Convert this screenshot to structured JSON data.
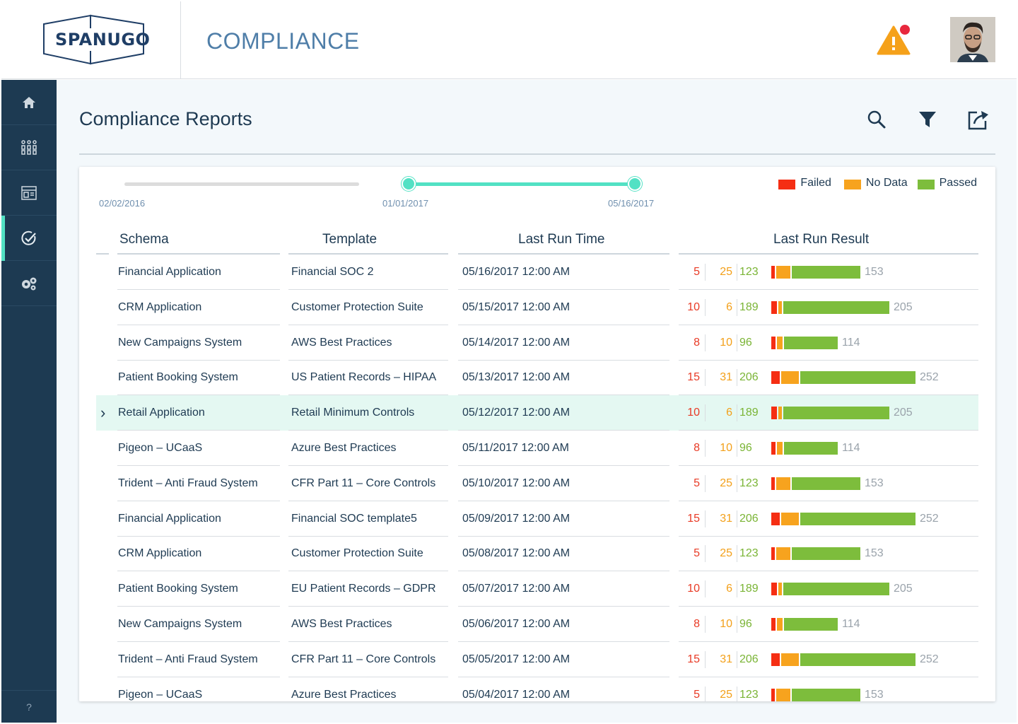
{
  "brand": {
    "logo_text": "SPANUGO",
    "app_title": "COMPLIANCE"
  },
  "page": {
    "title": "Compliance Reports"
  },
  "timeline": {
    "start": "02/02/2016",
    "range_start": "01/01/2017",
    "range_end": "05/16/2017"
  },
  "legend": {
    "failed": "Failed",
    "nodata": "No Data",
    "passed": "Passed"
  },
  "colors": {
    "failed": "#f52e13",
    "nodata": "#f7a31e",
    "passed": "#7dbd3c",
    "accent": "#52e1c4",
    "sidebar": "#1d3a52"
  },
  "columns": {
    "schema": "Schema",
    "template": "Template",
    "time": "Last Run Time",
    "result": "Last Run Result"
  },
  "sidebar": {
    "help": "?"
  },
  "rows": [
    {
      "schema": "Financial Application",
      "template": "Financial SOC 2",
      "time": "05/16/2017 12:00 AM",
      "failed": 5,
      "nodata": 25,
      "passed": 123,
      "total": 153
    },
    {
      "schema": "CRM Application",
      "template": "Customer Protection Suite",
      "time": "05/15/2017 12:00 AM",
      "failed": 10,
      "nodata": 6,
      "passed": 189,
      "total": 205
    },
    {
      "schema": "New Campaigns System",
      "template": "AWS Best Practices",
      "time": "05/14/2017 12:00 AM",
      "failed": 8,
      "nodata": 10,
      "passed": 96,
      "total": 114
    },
    {
      "schema": "Patient Booking System",
      "template": "US Patient Records – HIPAA",
      "time": "05/13/2017 12:00 AM",
      "failed": 15,
      "nodata": 31,
      "passed": 206,
      "total": 252
    },
    {
      "schema": "Retail Application",
      "template": "Retail Minimum Controls",
      "time": "05/12/2017 12:00 AM",
      "failed": 10,
      "nodata": 6,
      "passed": 189,
      "total": 205,
      "selected": true
    },
    {
      "schema": "Pigeon – UCaaS",
      "template": "Azure Best Practices",
      "time": "05/11/2017 12:00 AM",
      "failed": 8,
      "nodata": 10,
      "passed": 96,
      "total": 114
    },
    {
      "schema": "Trident – Anti Fraud System",
      "template": "CFR Part 11 – Core Controls",
      "time": "05/10/2017 12:00 AM",
      "failed": 5,
      "nodata": 25,
      "passed": 123,
      "total": 153
    },
    {
      "schema": "Financial Application",
      "template": "Financial SOC template5",
      "time": "05/09/2017 12:00 AM",
      "failed": 15,
      "nodata": 31,
      "passed": 206,
      "total": 252
    },
    {
      "schema": "CRM Application",
      "template": "Customer Protection Suite",
      "time": "05/08/2017 12:00 AM",
      "failed": 5,
      "nodata": 25,
      "passed": 123,
      "total": 153
    },
    {
      "schema": "Patient Booking System",
      "template": "EU Patient Records – GDPR",
      "time": "05/07/2017 12:00 AM",
      "failed": 10,
      "nodata": 6,
      "passed": 189,
      "total": 205
    },
    {
      "schema": "New Campaigns System",
      "template": "AWS Best Practices",
      "time": "05/06/2017 12:00 AM",
      "failed": 8,
      "nodata": 10,
      "passed": 96,
      "total": 114
    },
    {
      "schema": "Trident – Anti Fraud System",
      "template": "CFR Part 11 – Core Controls",
      "time": "05/05/2017 12:00 AM",
      "failed": 15,
      "nodata": 31,
      "passed": 206,
      "total": 252
    },
    {
      "schema": "Pigeon – UCaaS",
      "template": "Azure Best Practices",
      "time": "05/04/2017 12:00 AM",
      "failed": 5,
      "nodata": 25,
      "passed": 123,
      "total": 153
    }
  ]
}
